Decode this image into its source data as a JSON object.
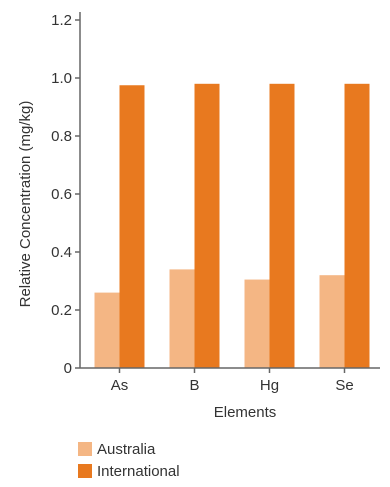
{
  "chart_data": {
    "type": "bar",
    "categories": [
      "As",
      "B",
      "Hg",
      "Se"
    ],
    "series": [
      {
        "name": "Australia",
        "values": [
          0.26,
          0.34,
          0.305,
          0.32
        ],
        "color": "#f4b684"
      },
      {
        "name": "International",
        "values": [
          0.975,
          0.98,
          0.98,
          0.98
        ],
        "color": "#e8791f"
      }
    ],
    "xlabel": "Elements",
    "ylabel": "Relative Concentration (mg/kg)",
    "ylim": [
      0,
      1.2
    ],
    "yticks": [
      "0",
      "0.2",
      "0.4",
      "0.6",
      "0.8",
      "1.0",
      "1.2"
    ],
    "grid": false,
    "legend_position": "bottom-left"
  }
}
